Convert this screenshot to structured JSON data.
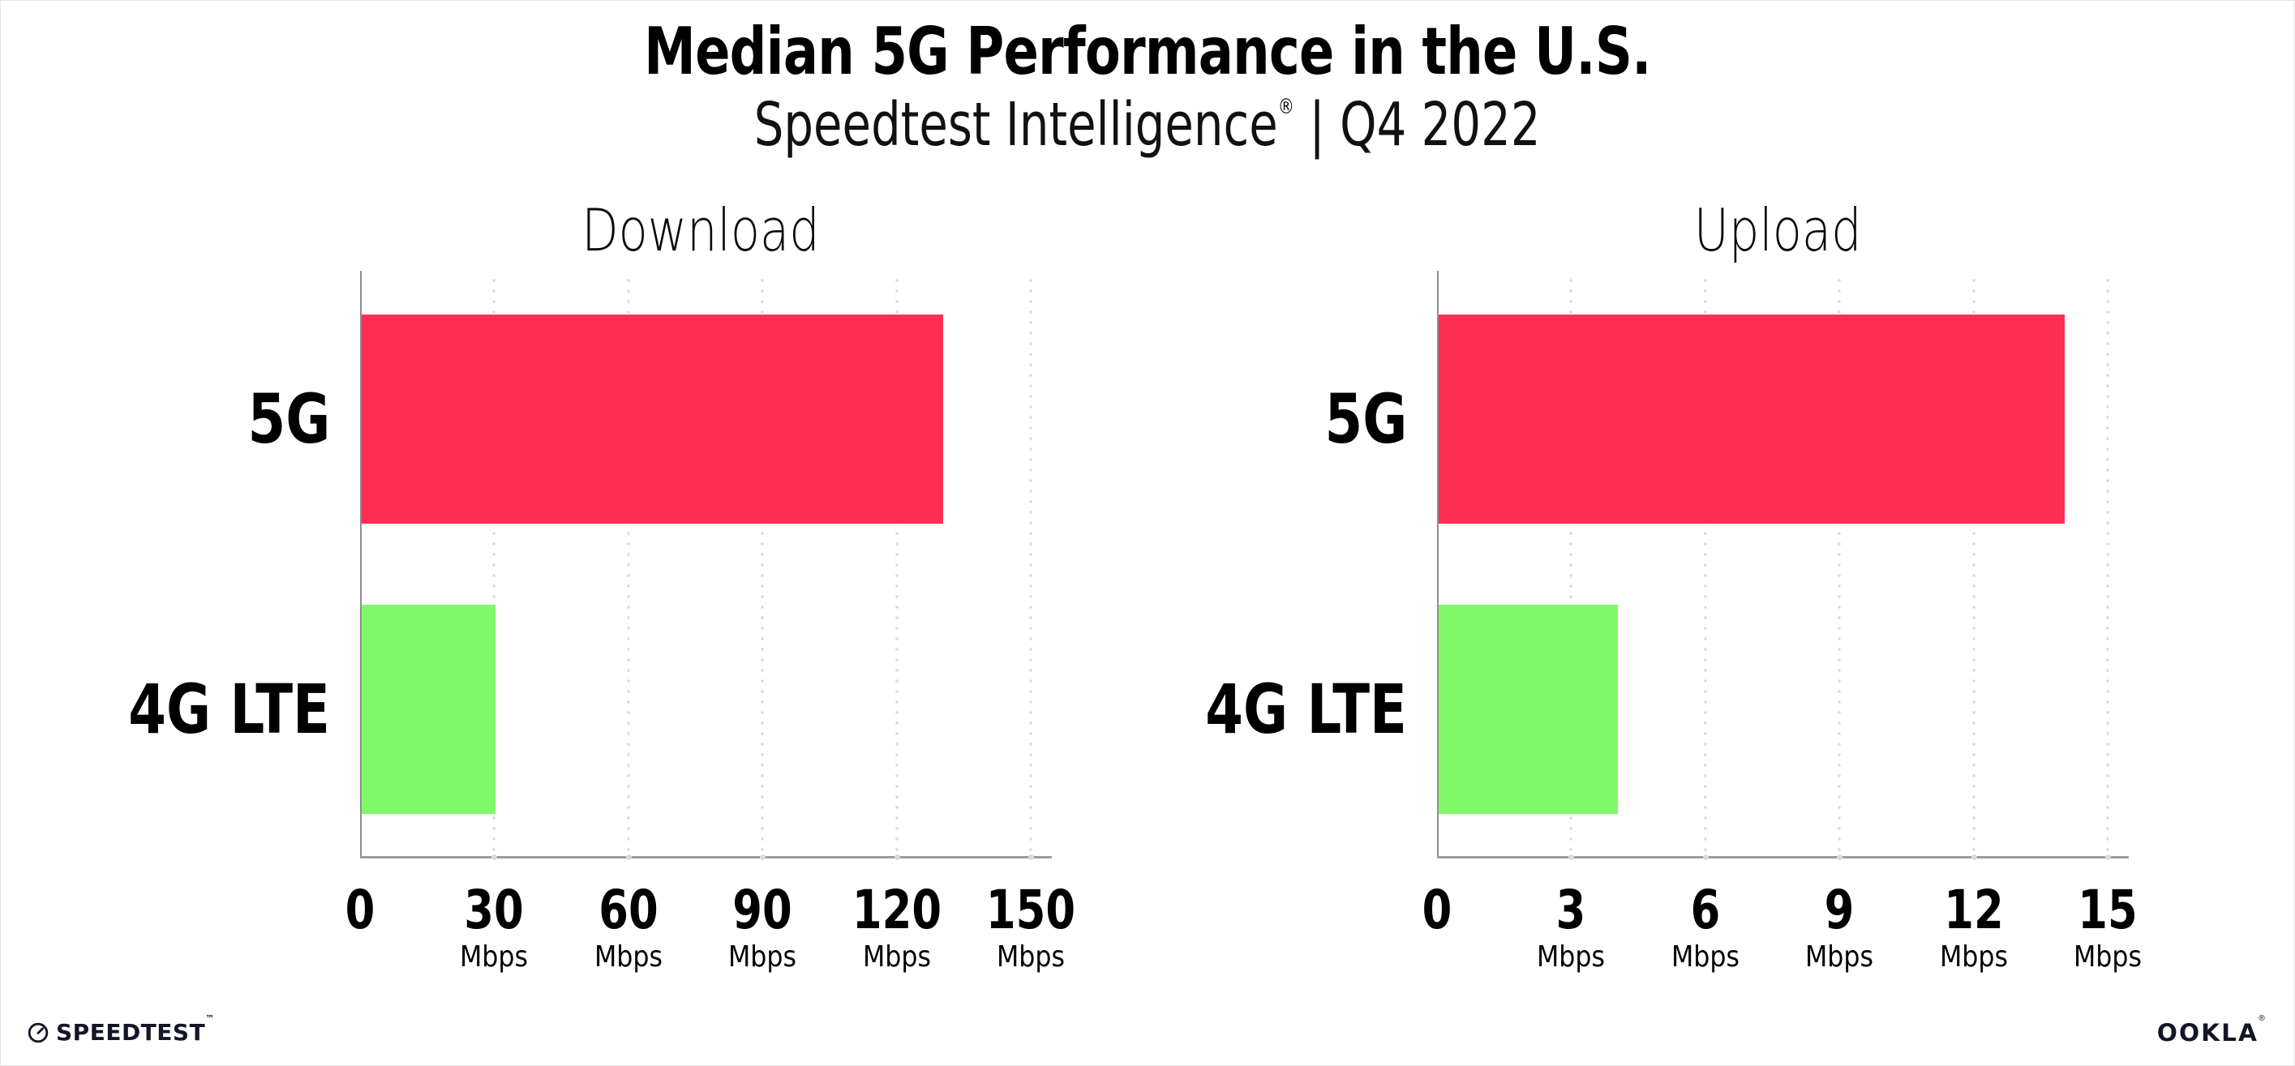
{
  "header": {
    "title": "Median 5G Performance in the U.S.",
    "subtitle_brand": "Speedtest Intelligence",
    "subtitle_reg": "®",
    "subtitle_rest": " | Q4 2022"
  },
  "colors": {
    "bar_5g": "#ff2e55",
    "bar_4g_lte": "#80fa68",
    "gridline": "#d9d9e6",
    "axis": "#9d9d9d",
    "footer_text": "#141526"
  },
  "chart_data": [
    {
      "type": "bar",
      "orientation": "horizontal",
      "title": "Download",
      "categories": [
        "5G",
        "4G LTE"
      ],
      "values": [
        130,
        30
      ],
      "unit": "Mbps",
      "x_ticks": [
        0,
        30,
        60,
        90,
        120,
        150
      ],
      "x_tick_unit_label": "Mbps",
      "xlim": [
        0,
        152
      ],
      "grid": "dotted-vertical",
      "legend": "none",
      "bar_colors": [
        "#ff2e55",
        "#80fa68"
      ]
    },
    {
      "type": "bar",
      "orientation": "horizontal",
      "title": "Upload",
      "categories": [
        "5G",
        "4G LTE"
      ],
      "values": [
        14,
        4
      ],
      "unit": "Mbps",
      "x_ticks": [
        0,
        3,
        6,
        9,
        12,
        15
      ],
      "x_tick_unit_label": "Mbps",
      "xlim": [
        0,
        15.2
      ],
      "grid": "dotted-vertical",
      "legend": "none",
      "bar_colors": [
        "#ff2e55",
        "#80fa68"
      ]
    }
  ],
  "footer": {
    "speedtest_label": "SPEEDTEST",
    "speedtest_tm": "™",
    "ookla_label": "OOKLA",
    "ookla_reg": "®"
  }
}
